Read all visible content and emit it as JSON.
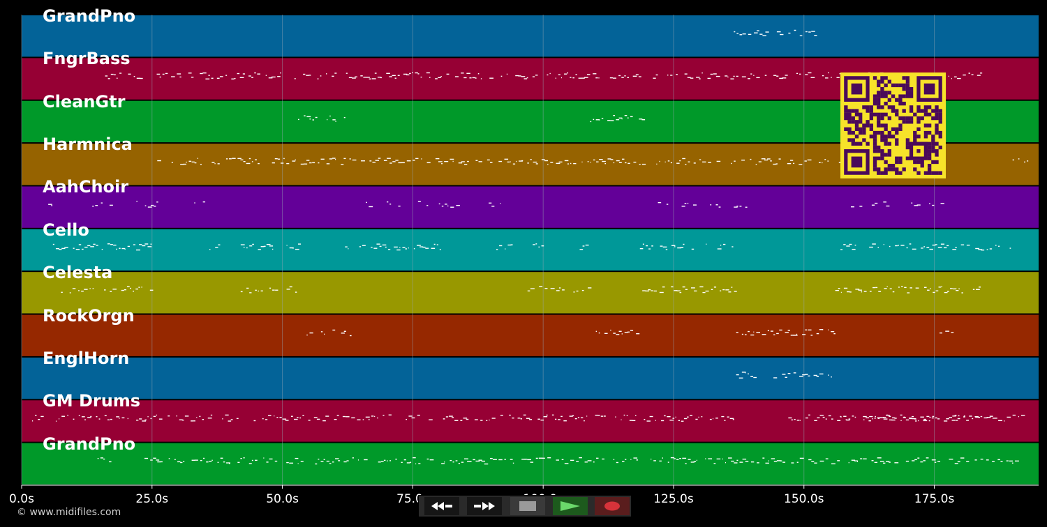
{
  "tracks": [
    {
      "name": "GrandPno",
      "color": "#036398"
    },
    {
      "name": "FngrBass",
      "color": "#960034"
    },
    {
      "name": "CleanGtr",
      "color": "#009929"
    },
    {
      "name": "Harmnica",
      "color": "#966300"
    },
    {
      "name": "AahChoir",
      "color": "#630098"
    },
    {
      "name": "Cello",
      "color": "#009898"
    },
    {
      "name": "Celesta",
      "color": "#989800"
    },
    {
      "name": "RockOrgn",
      "color": "#962800"
    },
    {
      "name": "EnglHorn",
      "color": "#036398"
    },
    {
      "name": "GM Drums",
      "color": "#960034"
    },
    {
      "name": "GrandPno",
      "color": "#009929"
    }
  ],
  "time_axis": {
    "unit": "s",
    "max_seconds": 195,
    "ticks": [
      "0.0s",
      "25.0s",
      "50.0s",
      "75.0s",
      "100.0s",
      "125.0s",
      "150.0s",
      "175.0s"
    ]
  },
  "copyright": "© www.midifiles.com",
  "transport": {
    "buttons": [
      {
        "name": "rewind",
        "icon": "rewind-icon",
        "color": "#161616"
      },
      {
        "name": "fast-forward",
        "icon": "fast-forward-icon",
        "color": "#161616"
      },
      {
        "name": "stop",
        "icon": "stop-icon",
        "color": "#3a3a3a"
      },
      {
        "name": "play",
        "icon": "play-icon",
        "color": "#1d5a1d"
      },
      {
        "name": "record",
        "icon": "record-icon",
        "color": "#5a1d1d"
      }
    ]
  },
  "qr_code": {
    "foreground": "#4a0a5a",
    "background": "#f7e32a"
  },
  "colors": {
    "background": "#000000",
    "note": "#ffffff",
    "grid": "#9aa9b6"
  }
}
